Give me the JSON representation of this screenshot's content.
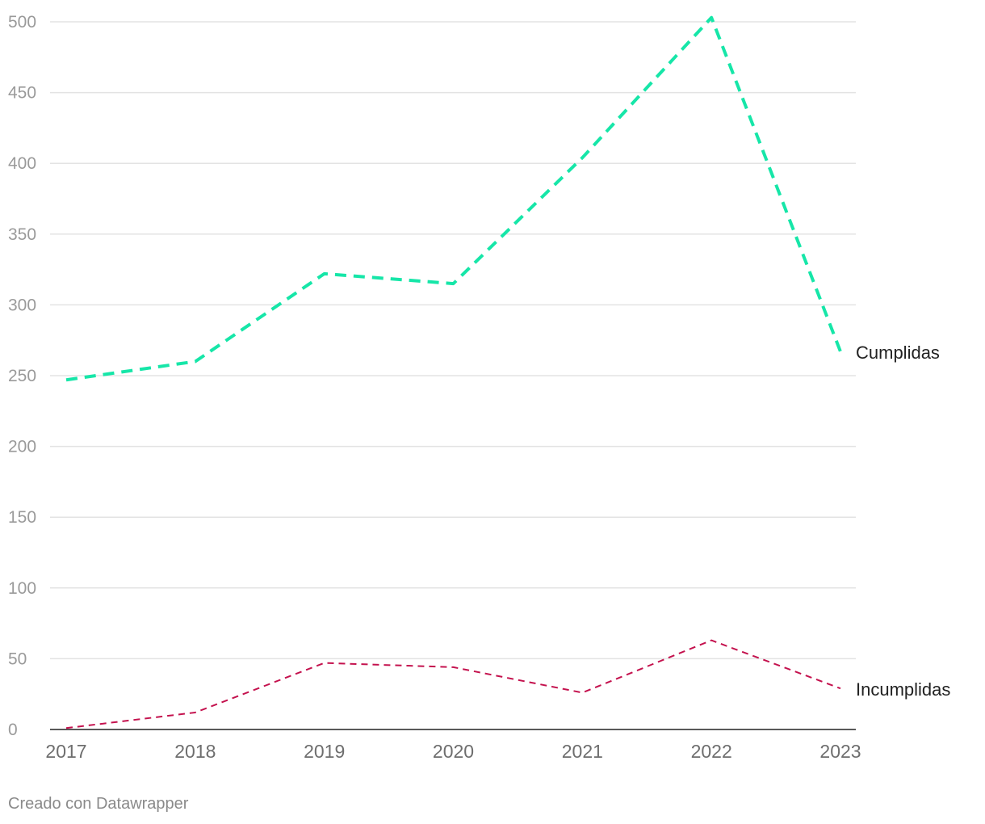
{
  "chart_data": {
    "type": "line",
    "x": [
      "2017",
      "2018",
      "2019",
      "2020",
      "2021",
      "2022",
      "2023"
    ],
    "series": [
      {
        "name": "Cumplidas",
        "values": [
          247,
          260,
          322,
          315,
          404,
          503,
          267
        ],
        "color": "#16e6a8",
        "style": "dashed"
      },
      {
        "name": "Incumplidas",
        "values": [
          1,
          12,
          47,
          44,
          26,
          63,
          29
        ],
        "color": "#c4124e",
        "style": "dashed"
      }
    ],
    "yticks": [
      0,
      50,
      100,
      150,
      200,
      250,
      300,
      350,
      400,
      450,
      500
    ],
    "ylim": [
      0,
      500
    ],
    "grid": true,
    "legend": "direct-labels-right"
  },
  "footer": {
    "credit": "Creado con Datawrapper"
  }
}
